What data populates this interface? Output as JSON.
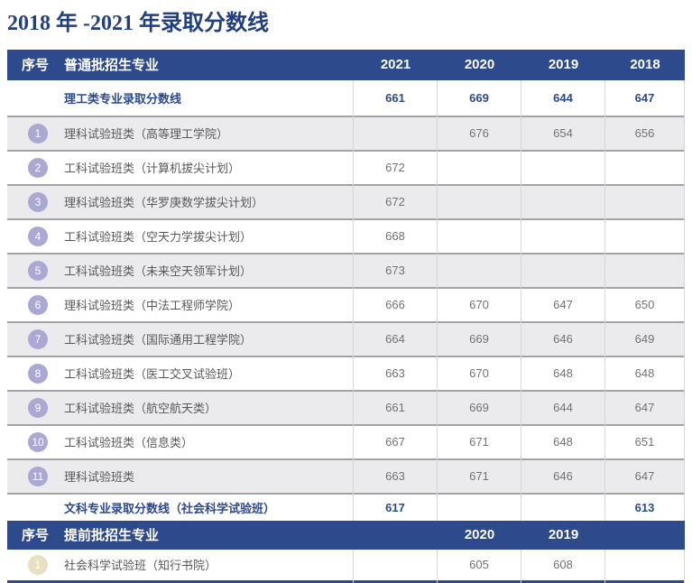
{
  "page_title": "2018 年 -2021 年录取分数线",
  "theme": {
    "header_navy": "#2d4a8c",
    "title_navy": "#21407f",
    "bold_text_navy": "#2b4a8e",
    "row_shade_gray": "#ebebed",
    "divider_gray": "#a1a2a6",
    "column_line_gray": "#d6d6da",
    "badge_lavender": "#a9a9d3",
    "badge_beige": "#e9dfc3",
    "body_text_gray": "#57585c",
    "value_text_gray": "#717276"
  },
  "table1": {
    "header": {
      "col_index": "序号",
      "col_major": "普通批招生专业",
      "years": [
        "2021",
        "2020",
        "2019",
        "2018"
      ]
    },
    "summary_row": {
      "label": "理工类专业录取分数线",
      "values": [
        "661",
        "669",
        "644",
        "647"
      ]
    },
    "rows": [
      {
        "num": "1",
        "name": "理科试验班类（高等理工学院）",
        "values": [
          "",
          "676",
          "654",
          "656"
        ]
      },
      {
        "num": "2",
        "name": "工科试验班类（计算机拔尖计划）",
        "values": [
          "672",
          "",
          "",
          ""
        ]
      },
      {
        "num": "3",
        "name": "理科试验班类（华罗庚数学拔尖计划）",
        "values": [
          "672",
          "",
          "",
          ""
        ]
      },
      {
        "num": "4",
        "name": "工科试验班类（空天力学拔尖计划）",
        "values": [
          "668",
          "",
          "",
          ""
        ]
      },
      {
        "num": "5",
        "name": "工科试验班类（未来空天领军计划）",
        "values": [
          "673",
          "",
          "",
          ""
        ]
      },
      {
        "num": "6",
        "name": "理科试验班类（中法工程师学院）",
        "values": [
          "666",
          "670",
          "647",
          "650"
        ]
      },
      {
        "num": "7",
        "name": "工科试验班类（国际通用工程学院）",
        "values": [
          "664",
          "669",
          "646",
          "649"
        ]
      },
      {
        "num": "8",
        "name": "工科试验班类（医工交叉试验班）",
        "values": [
          "663",
          "670",
          "648",
          "648"
        ]
      },
      {
        "num": "9",
        "name": "工科试验班类（航空航天类）",
        "values": [
          "661",
          "669",
          "644",
          "647"
        ]
      },
      {
        "num": "10",
        "name": "工科试验班类（信息类）",
        "values": [
          "667",
          "671",
          "648",
          "651"
        ]
      },
      {
        "num": "11",
        "name": "理科试验班类",
        "values": [
          "663",
          "671",
          "646",
          "647"
        ]
      }
    ],
    "arts_row": {
      "label": "文科专业录取分数线（社会科学试验班）",
      "values": [
        "617",
        "",
        "",
        "613"
      ]
    }
  },
  "table2": {
    "header": {
      "col_index": "序号",
      "col_major": "提前批招生专业",
      "years": [
        "",
        "2020",
        "2019",
        ""
      ]
    },
    "rows": [
      {
        "num": "1",
        "name": "社会科学试验班（知行书院）",
        "values": [
          "",
          "605",
          "608",
          ""
        ]
      }
    ]
  }
}
